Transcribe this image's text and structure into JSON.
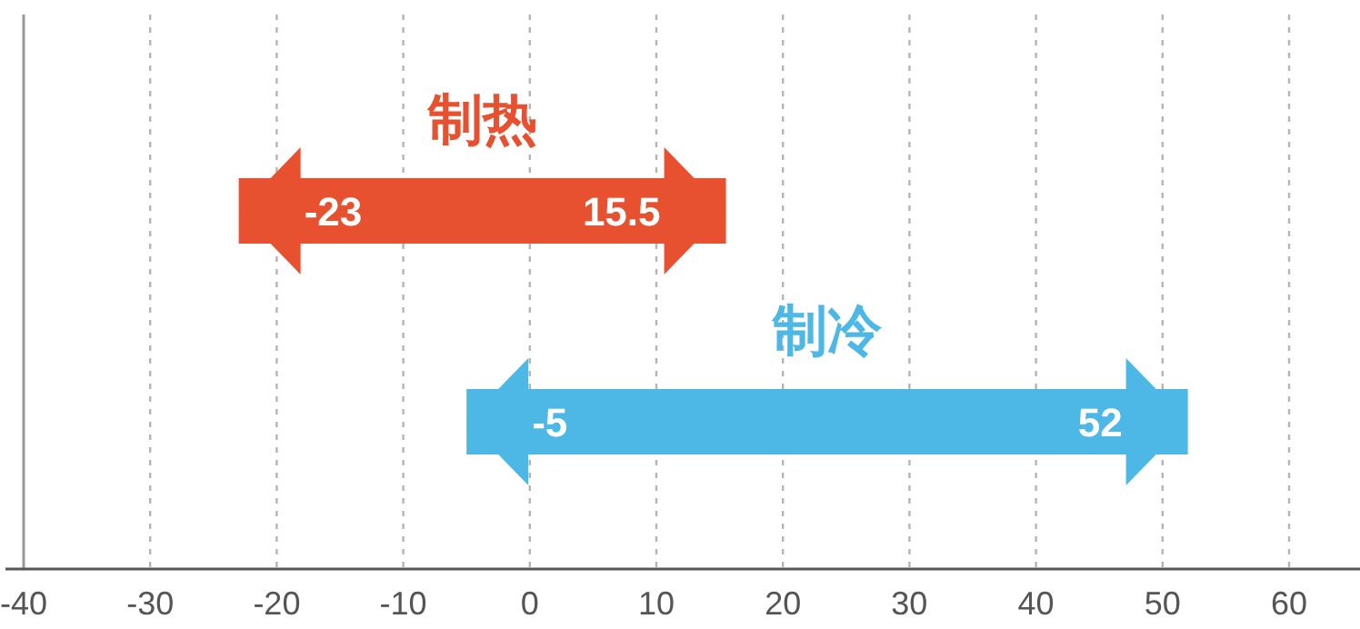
{
  "chart_data": {
    "type": "bar",
    "orientation": "horizontal",
    "categories": [
      "制热",
      "制冷"
    ],
    "base": [
      -23,
      -5
    ],
    "values": [
      38.5,
      57
    ],
    "colors": [
      "#e8512f",
      "#4db8e6"
    ],
    "xlim": [
      -40,
      60
    ],
    "xticks": [
      -40,
      -30,
      -20,
      -10,
      0,
      10,
      20,
      30,
      40,
      50,
      60
    ],
    "grid": "x",
    "annotations": [
      "-23",
      "15.5",
      "-5",
      "52"
    ]
  }
}
